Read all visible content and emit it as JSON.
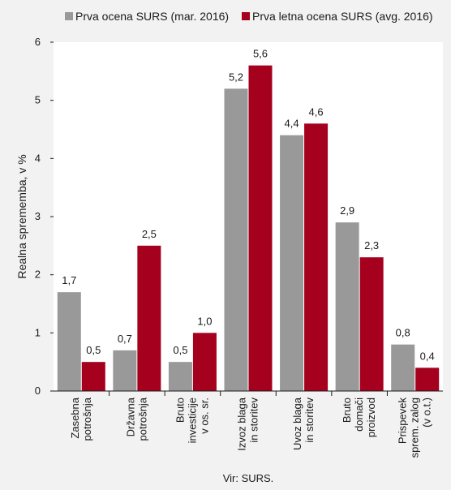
{
  "chart_data": {
    "type": "bar",
    "ylabel": "Realna sprememba, v %",
    "ylim": [
      0,
      6
    ],
    "yticks": [
      0,
      1,
      2,
      3,
      4,
      5,
      6
    ],
    "grid": false,
    "legend_position": "top",
    "categories": [
      [
        "Zasebna",
        "potrošnja"
      ],
      [
        "Državna",
        "potrošnja"
      ],
      [
        "Bruto",
        "investicije",
        "v os. sr."
      ],
      [
        "Izvoz blaga",
        "in storitev"
      ],
      [
        "Uvoz blaga",
        "in storitev"
      ],
      [
        "Bruto",
        "domači",
        "proizvod"
      ],
      [
        "Prispevek",
        "sprem. zalog",
        "(v o.t.)"
      ]
    ],
    "series": [
      {
        "name": "Prva ocena SURS (mar. 2016)",
        "color": "#999999",
        "values": [
          1.7,
          0.7,
          0.5,
          5.2,
          4.4,
          2.9,
          0.8
        ],
        "labels": [
          "1,7",
          "0,7",
          "0,5",
          "5,2",
          "4,4",
          "2,9",
          "0,8"
        ]
      },
      {
        "name": "Prva letna ocena SURS (avg. 2016)",
        "color": "#a6001f",
        "values": [
          0.5,
          2.5,
          1.0,
          5.6,
          4.6,
          2.3,
          0.4
        ],
        "labels": [
          "0,5",
          "2,5",
          "1,0",
          "5,6",
          "4,6",
          "2,3",
          "0,4"
        ]
      }
    ],
    "source": "Vir: SURS."
  }
}
